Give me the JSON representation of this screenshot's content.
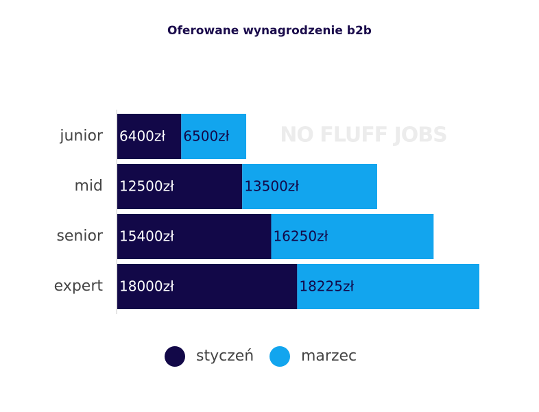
{
  "chart_data": {
    "type": "stacked-horizontal-bar",
    "title": "Oferowane wynagrodzenie b2b",
    "watermark": "NO FLUFF JOBS",
    "categories": [
      "junior",
      "mid",
      "senior",
      "expert"
    ],
    "series": [
      {
        "name": "styczeń",
        "color": "#120848",
        "values": [
          6400,
          12500,
          15400,
          18000
        ],
        "value_labels": [
          "6400zł",
          "12500zł",
          "15400zł",
          "18000zł"
        ]
      },
      {
        "name": "marzec",
        "color": "#12a5ee",
        "values": [
          6500,
          13500,
          16250,
          18225
        ],
        "value_labels": [
          "6500zł",
          "13500zł",
          "16250zł",
          "18225zł"
        ]
      }
    ],
    "legend": "bottom"
  }
}
